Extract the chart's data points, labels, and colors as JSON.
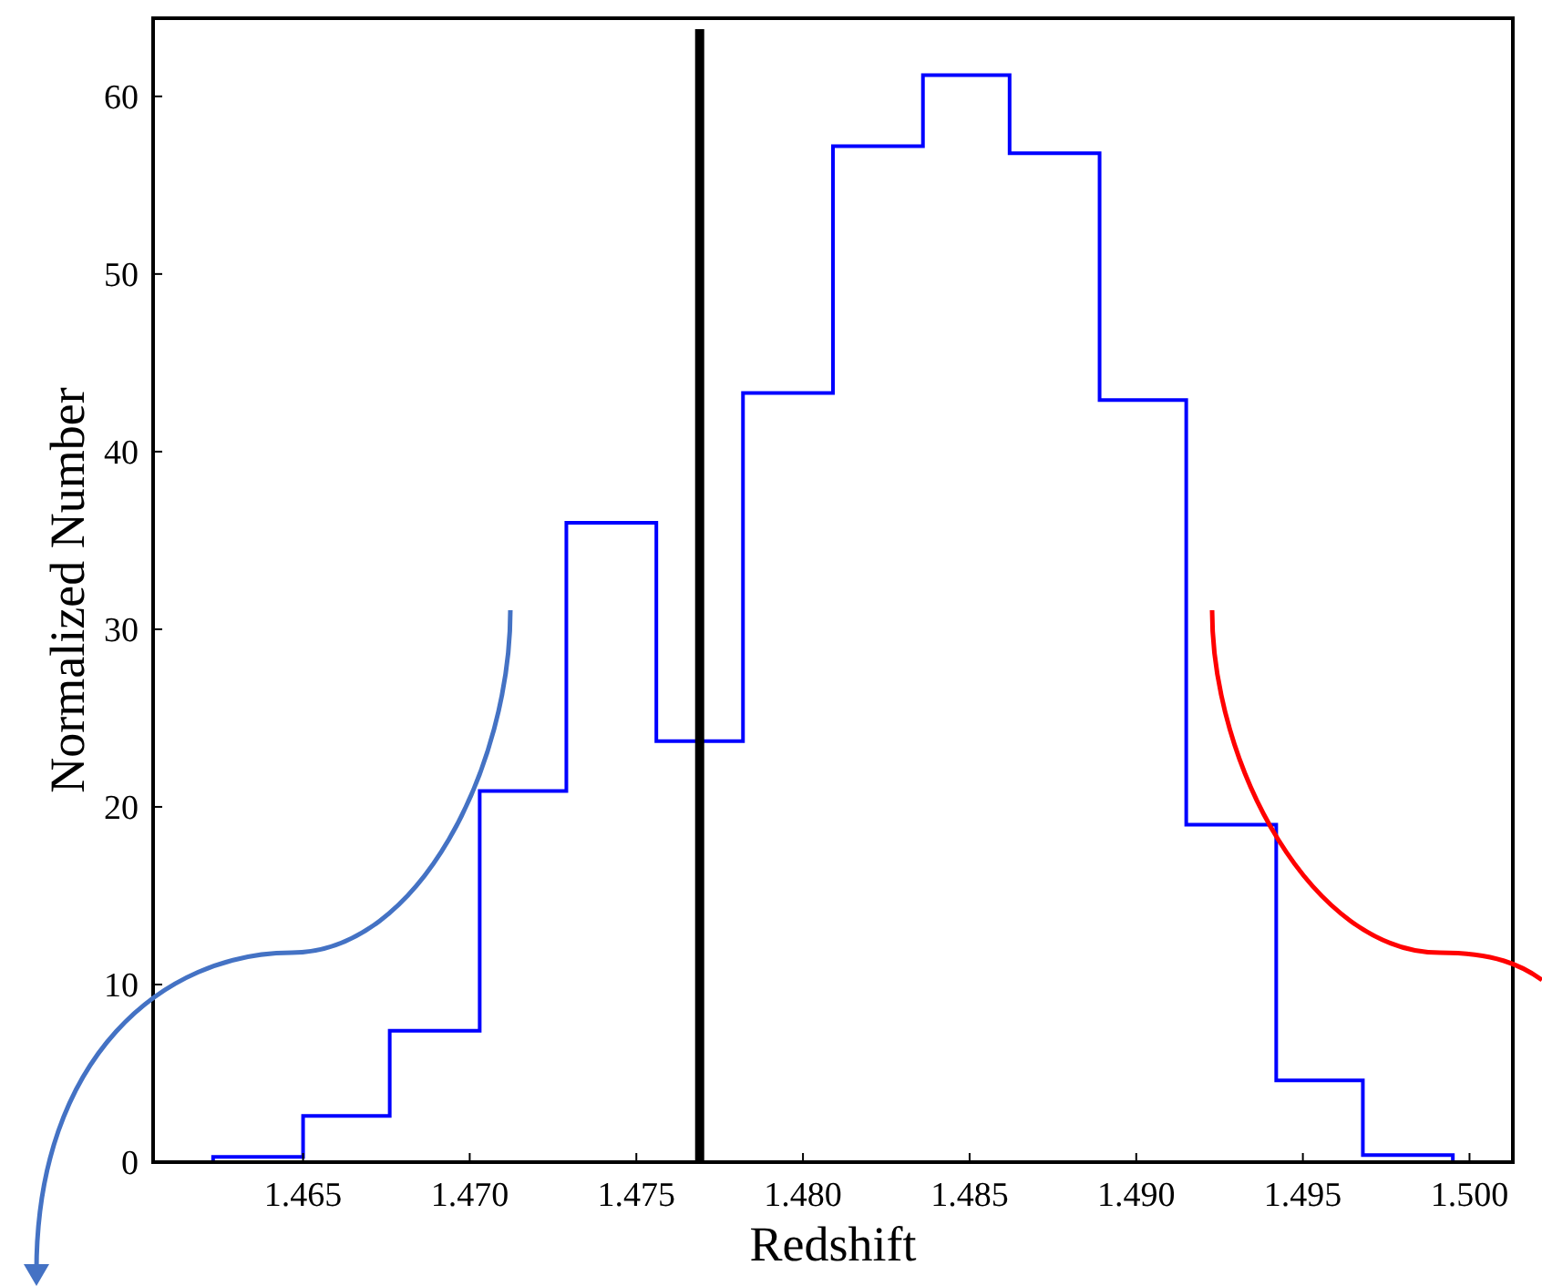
{
  "chart_data": {
    "type": "histogram",
    "xlabel": "Redshift",
    "ylabel": "Normalized Number",
    "bins": [
      1.4623,
      1.465,
      1.4676,
      1.4703,
      1.4729,
      1.4756,
      1.4782,
      1.4809,
      1.4836,
      1.4862,
      1.4889,
      1.4915,
      1.4942,
      1.4968,
      1.4995
    ],
    "values": [
      0.3,
      2.6,
      7.4,
      20.9,
      36.0,
      23.7,
      43.3,
      57.2,
      61.2,
      56.8,
      42.9,
      19.0,
      4.6,
      0.4
    ],
    "color": "#0000ff",
    "xlim": [
      1.4605,
      1.5013
    ],
    "ylim": [
      0,
      64.4
    ],
    "xticks": [
      1.465,
      {
        "value": 1.47,
        "label": "1.470"
      },
      1.475,
      {
        "value": 1.48,
        "label": "1.480"
      },
      1.485,
      {
        "value": 1.49,
        "label": "1.490"
      },
      1.495,
      {
        "value": 1.5,
        "label": "1.500"
      }
    ],
    "yticks": [
      0,
      10,
      20,
      30,
      40,
      50,
      60
    ],
    "ref_lines": [
      {
        "axis": "x",
        "value": 1.4769,
        "color": "#000000"
      }
    ]
  }
}
